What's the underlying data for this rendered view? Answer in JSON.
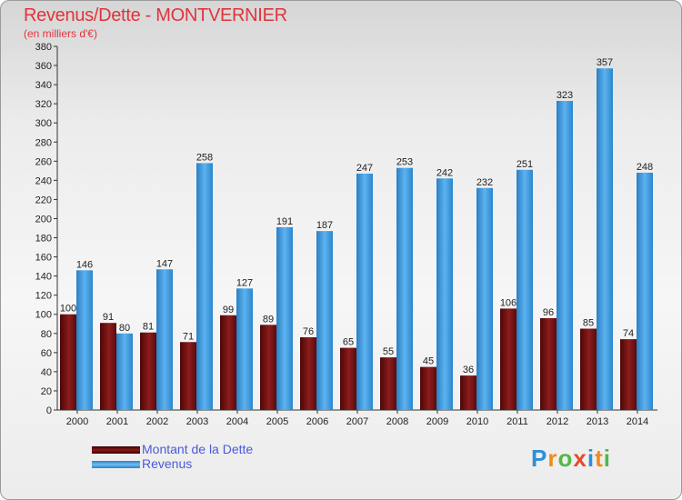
{
  "header": {
    "title": "Revenus/Dette - MONTVERNIER",
    "subtitle": "(en milliers d'€)"
  },
  "legend": {
    "items": [
      {
        "label": "Montant de la Dette",
        "color": "#7a1414"
      },
      {
        "label": "Revenus",
        "color": "#3d9ee0"
      }
    ]
  },
  "logo": {
    "text": "Proxiti",
    "colors": [
      "#2d8fd6",
      "#f08a1c",
      "#52b848",
      "#e54b2b",
      "#2d8fd6",
      "#f08a1c",
      "#52b848"
    ]
  },
  "chart_data": {
    "type": "bar",
    "title": "Revenus/Dette - MONTVERNIER",
    "subtitle": "(en milliers d'€)",
    "categories": [
      "2000",
      "2001",
      "2002",
      "2003",
      "2004",
      "2005",
      "2006",
      "2007",
      "2008",
      "2009",
      "2010",
      "2011",
      "2012",
      "2013",
      "2014"
    ],
    "series": [
      {
        "name": "Montant de la Dette",
        "color": "#7a1414",
        "values": [
          100,
          91,
          81,
          71,
          99,
          89,
          76,
          65,
          55,
          45,
          36,
          106,
          96,
          85,
          74
        ]
      },
      {
        "name": "Revenus",
        "color": "#3d9ee0",
        "values": [
          146,
          80,
          147,
          258,
          127,
          191,
          187,
          247,
          253,
          242,
          232,
          251,
          323,
          357,
          248
        ]
      }
    ],
    "ylim": [
      0,
      380
    ],
    "ytick_step": 20,
    "grid": false,
    "legend_position": "bottom-left"
  }
}
